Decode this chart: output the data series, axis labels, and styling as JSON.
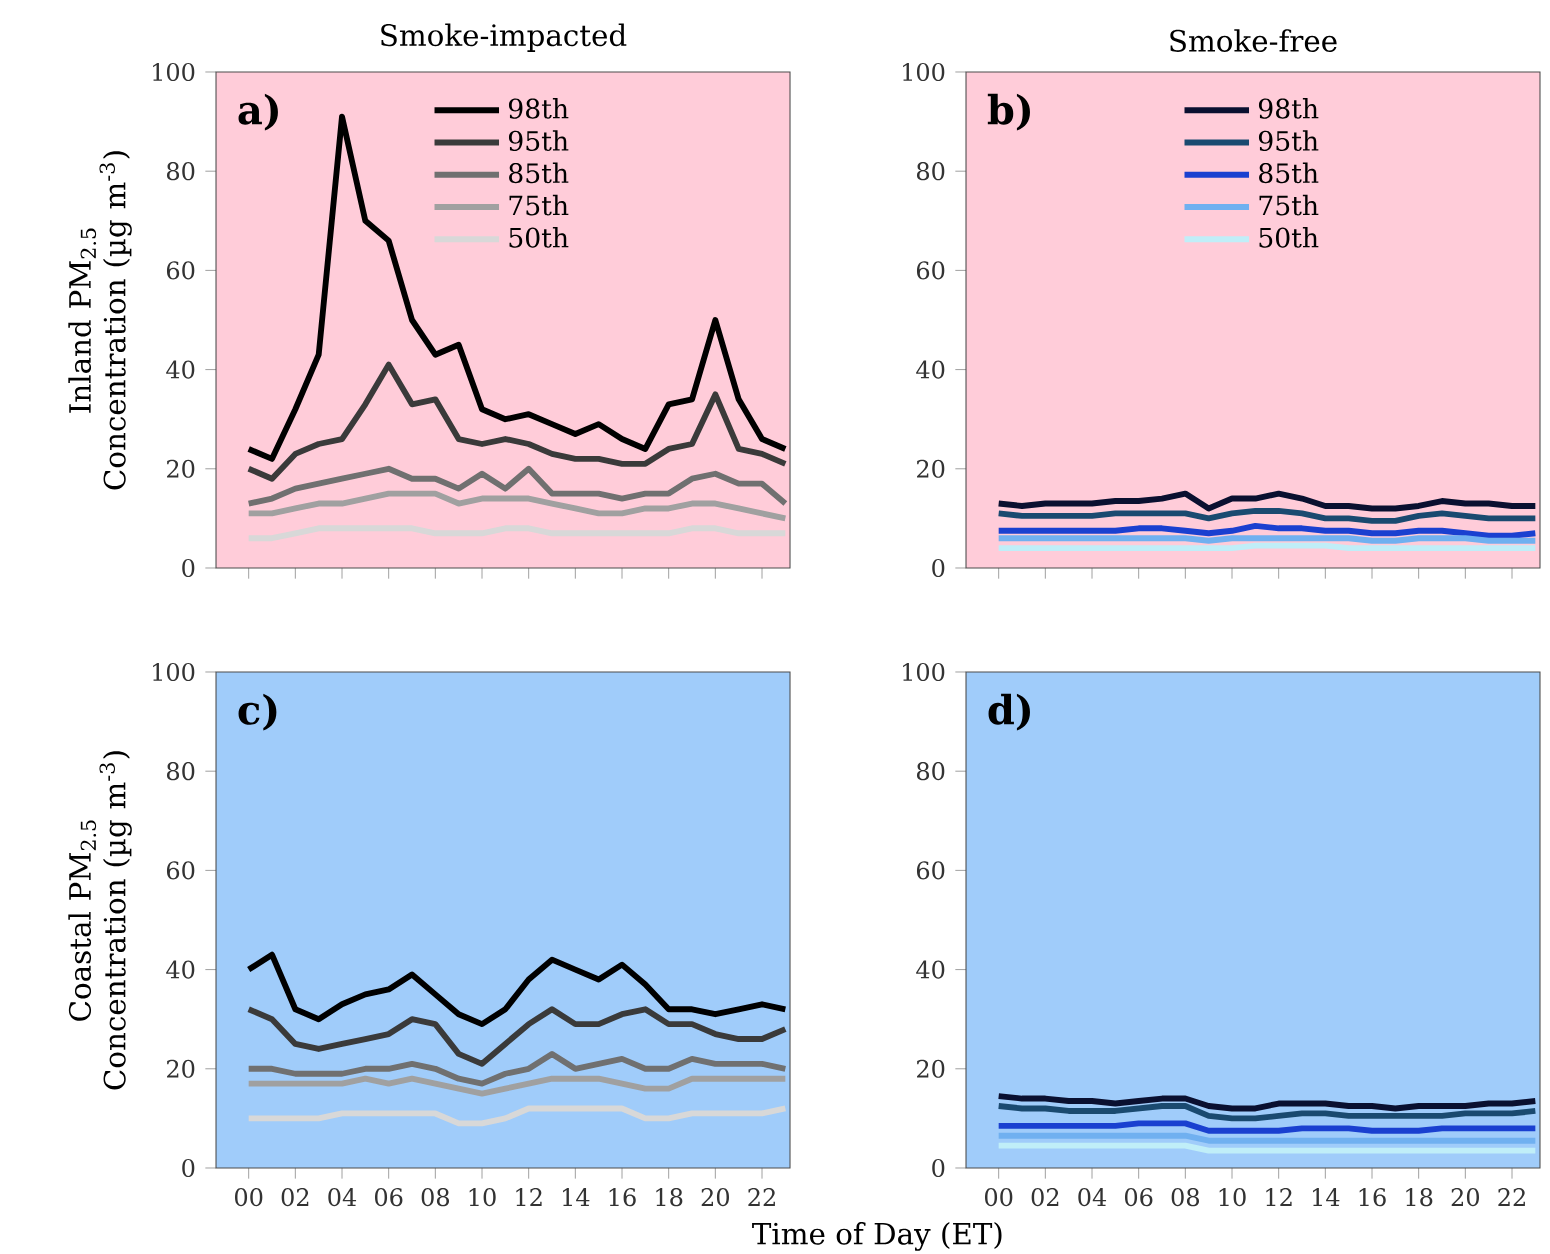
{
  "chart_data": [
    {
      "type": "line",
      "title": "Smoke-impacted",
      "ylabel": "Inland PM$_{2.5}$ Concentration (µg m$^{-3}$)",
      "annotations": [
        "a)"
      ],
      "x": [
        0,
        1,
        2,
        3,
        4,
        5,
        6,
        7,
        8,
        9,
        10,
        11,
        12,
        13,
        14,
        15,
        16,
        17,
        18,
        19,
        20,
        21,
        22,
        23
      ],
      "xlim": [
        -1.4,
        23.2
      ],
      "ylim": [
        0,
        100
      ],
      "xticks": [
        {
          "value": 0,
          "label": null
        },
        {
          "value": 2,
          "label": null
        },
        {
          "value": 4,
          "label": null
        },
        {
          "value": 6,
          "label": null
        },
        {
          "value": 8,
          "label": null
        },
        {
          "value": 10,
          "label": null
        },
        {
          "value": 12,
          "label": null
        },
        {
          "value": 14,
          "label": null
        },
        {
          "value": 16,
          "label": null
        },
        {
          "value": 18,
          "label": null
        },
        {
          "value": 20,
          "label": null
        },
        {
          "value": 22,
          "label": null
        }
      ],
      "yticks": [
        0,
        20,
        40,
        60,
        80,
        100
      ],
      "tick_labels": "y",
      "legend": "top",
      "marker": "none",
      "line_style": "solid",
      "series": [
        {
          "name": "98th",
          "color": "#000000",
          "values": [
            24,
            22,
            32,
            43,
            91,
            70,
            66,
            50,
            43,
            45,
            32,
            30,
            31,
            29,
            27,
            29,
            26,
            24,
            33,
            34,
            50,
            34,
            26,
            24
          ]
        },
        {
          "name": "95th",
          "color": "#3a3a3a",
          "values": [
            20,
            18,
            23,
            25,
            26,
            33,
            41,
            33,
            34,
            26,
            25,
            26,
            25,
            23,
            22,
            22,
            21,
            21,
            24,
            25,
            35,
            24,
            23,
            21
          ]
        },
        {
          "name": "85th",
          "color": "#707070",
          "values": [
            13,
            14,
            16,
            17,
            18,
            19,
            20,
            18,
            18,
            16,
            19,
            16,
            20,
            15,
            15,
            15,
            14,
            15,
            15,
            18,
            19,
            17,
            17,
            13
          ]
        },
        {
          "name": "75th",
          "color": "#a0a0a0",
          "values": [
            11,
            11,
            12,
            13,
            13,
            14,
            15,
            15,
            15,
            13,
            14,
            14,
            14,
            13,
            12,
            11,
            11,
            12,
            12,
            13,
            13,
            12,
            11,
            10
          ]
        },
        {
          "name": "50th",
          "color": "#d8d8d8",
          "values": [
            6,
            6,
            7,
            8,
            8,
            8,
            8,
            8,
            7,
            7,
            7,
            8,
            8,
            7,
            7,
            7,
            7,
            7,
            7,
            8,
            8,
            7,
            7,
            7
          ]
        }
      ]
    },
    {
      "type": "line",
      "title": "Smoke-free",
      "annotations": [
        "b)"
      ],
      "x": [
        0,
        1,
        2,
        3,
        4,
        5,
        6,
        7,
        8,
        9,
        10,
        11,
        12,
        13,
        14,
        15,
        16,
        17,
        18,
        19,
        20,
        21,
        22,
        23
      ],
      "xlim": [
        -1.4,
        23.2
      ],
      "ylim": [
        0,
        100
      ],
      "xticks": [
        {
          "value": 0,
          "label": null
        },
        {
          "value": 2,
          "label": null
        },
        {
          "value": 4,
          "label": null
        },
        {
          "value": 6,
          "label": null
        },
        {
          "value": 8,
          "label": null
        },
        {
          "value": 10,
          "label": null
        },
        {
          "value": 12,
          "label": null
        },
        {
          "value": 14,
          "label": null
        },
        {
          "value": 16,
          "label": null
        },
        {
          "value": 18,
          "label": null
        },
        {
          "value": 20,
          "label": null
        },
        {
          "value": 22,
          "label": null
        }
      ],
      "yticks": [
        0,
        20,
        40,
        60,
        80,
        100
      ],
      "tick_labels": "y",
      "legend": "top",
      "marker": "none",
      "line_style": "solid",
      "series": [
        {
          "name": "98th",
          "color": "#0a1030",
          "values": [
            13,
            12.5,
            13,
            13,
            13,
            13.5,
            13.5,
            14,
            15,
            12,
            14,
            14,
            15,
            14,
            12.5,
            12.5,
            12,
            12,
            12.5,
            13.5,
            13,
            13,
            12.5,
            12.5
          ]
        },
        {
          "name": "95th",
          "color": "#1a4a70",
          "values": [
            11,
            10.5,
            10.5,
            10.5,
            10.5,
            11,
            11,
            11,
            11,
            10,
            11,
            11.5,
            11.5,
            11,
            10,
            10,
            9.5,
            9.5,
            10.5,
            11,
            10.5,
            10,
            10,
            10
          ]
        },
        {
          "name": "85th",
          "color": "#1a40d0",
          "values": [
            7.5,
            7.5,
            7.5,
            7.5,
            7.5,
            7.5,
            8,
            8,
            7.5,
            7,
            7.5,
            8.5,
            8,
            8,
            7.5,
            7.5,
            7,
            7,
            7.5,
            7.5,
            7,
            6.5,
            6.5,
            7
          ]
        },
        {
          "name": "75th",
          "color": "#70b0f0",
          "values": [
            6,
            6,
            6,
            6,
            6,
            6,
            6,
            6,
            6,
            5.5,
            6,
            6,
            6,
            6,
            6,
            6,
            5.5,
            5.5,
            6,
            6,
            6,
            5.5,
            5.5,
            5.5
          ]
        },
        {
          "name": "50th",
          "color": "#c0eef8",
          "values": [
            4,
            4,
            4,
            4,
            4,
            4,
            4,
            4,
            4,
            4,
            4,
            4.5,
            4.5,
            4.5,
            4.5,
            4,
            4,
            4,
            4,
            4,
            4,
            4,
            4,
            4
          ]
        }
      ]
    },
    {
      "type": "line",
      "ylabel": "Coastal PM$_{2.5}$ Concentration (µg m$^{-3}$)",
      "xlabel": "Time of Day (ET)",
      "annotations": [
        "c)"
      ],
      "x": [
        0,
        1,
        2,
        3,
        4,
        5,
        6,
        7,
        8,
        9,
        10,
        11,
        12,
        13,
        14,
        15,
        16,
        17,
        18,
        19,
        20,
        21,
        22,
        23
      ],
      "xlim": [
        -1.4,
        23.2
      ],
      "ylim": [
        0,
        100
      ],
      "xticks": [
        {
          "value": 0,
          "label": "00"
        },
        {
          "value": 2,
          "label": "02"
        },
        {
          "value": 4,
          "label": "04"
        },
        {
          "value": 6,
          "label": "06"
        },
        {
          "value": 8,
          "label": "08"
        },
        {
          "value": 10,
          "label": "10"
        },
        {
          "value": 12,
          "label": "12"
        },
        {
          "value": 14,
          "label": "14"
        },
        {
          "value": 16,
          "label": "16"
        },
        {
          "value": 18,
          "label": "18"
        },
        {
          "value": 20,
          "label": "20"
        },
        {
          "value": 22,
          "label": "22"
        }
      ],
      "yticks": [
        0,
        20,
        40,
        60,
        80,
        100
      ],
      "marker": "none",
      "line_style": "solid",
      "series": [
        {
          "color": "#000000",
          "values": [
            40,
            43,
            32,
            30,
            33,
            35,
            36,
            39,
            35,
            31,
            29,
            32,
            38,
            42,
            40,
            38,
            41,
            37,
            32,
            32,
            31,
            32,
            33,
            32
          ]
        },
        {
          "color": "#3a3a3a",
          "values": [
            32,
            30,
            25,
            24,
            25,
            26,
            27,
            30,
            29,
            23,
            21,
            25,
            29,
            32,
            29,
            29,
            31,
            32,
            29,
            29,
            27,
            26,
            26,
            28
          ]
        },
        {
          "color": "#707070",
          "values": [
            20,
            20,
            19,
            19,
            19,
            20,
            20,
            21,
            20,
            18,
            17,
            19,
            20,
            23,
            20,
            21,
            22,
            20,
            20,
            22,
            21,
            21,
            21,
            20
          ]
        },
        {
          "color": "#a0a0a0",
          "values": [
            17,
            17,
            17,
            17,
            17,
            18,
            17,
            18,
            17,
            16,
            15,
            16,
            17,
            18,
            18,
            18,
            17,
            16,
            16,
            18,
            18,
            18,
            18,
            18
          ]
        },
        {
          "color": "#d8d8d8",
          "values": [
            10,
            10,
            10,
            10,
            11,
            11,
            11,
            11,
            11,
            9,
            9,
            10,
            12,
            12,
            12,
            12,
            12,
            10,
            10,
            11,
            11,
            11,
            11,
            12
          ]
        }
      ]
    },
    {
      "type": "line",
      "annotations": [
        "d)"
      ],
      "x": [
        0,
        1,
        2,
        3,
        4,
        5,
        6,
        7,
        8,
        9,
        10,
        11,
        12,
        13,
        14,
        15,
        16,
        17,
        18,
        19,
        20,
        21,
        22,
        23
      ],
      "xlim": [
        -1.4,
        23.2
      ],
      "ylim": [
        0,
        100
      ],
      "xticks": [
        {
          "value": 0,
          "label": "00"
        },
        {
          "value": 2,
          "label": "02"
        },
        {
          "value": 4,
          "label": "04"
        },
        {
          "value": 6,
          "label": "06"
        },
        {
          "value": 8,
          "label": "08"
        },
        {
          "value": 10,
          "label": "10"
        },
        {
          "value": 12,
          "label": "12"
        },
        {
          "value": 14,
          "label": "14"
        },
        {
          "value": 16,
          "label": "16"
        },
        {
          "value": 18,
          "label": "18"
        },
        {
          "value": 20,
          "label": "20"
        },
        {
          "value": 22,
          "label": "22"
        }
      ],
      "yticks": [
        0,
        20,
        40,
        60,
        80,
        100
      ],
      "marker": "none",
      "line_style": "solid",
      "series": [
        {
          "color": "#0a1030",
          "values": [
            14.5,
            14,
            14,
            13.5,
            13.5,
            13,
            13.5,
            14,
            14,
            12.5,
            12,
            12,
            13,
            13,
            13,
            12.5,
            12.5,
            12,
            12.5,
            12.5,
            12.5,
            13,
            13,
            13.5
          ]
        },
        {
          "color": "#1a4a70",
          "values": [
            12.5,
            12,
            12,
            11.5,
            11.5,
            11.5,
            12,
            12.5,
            12.5,
            10.5,
            10,
            10,
            10.5,
            11,
            11,
            10.5,
            10.5,
            10.5,
            10.5,
            10.5,
            11,
            11,
            11,
            11.5
          ]
        },
        {
          "color": "#1a40d0",
          "values": [
            8.5,
            8.5,
            8.5,
            8.5,
            8.5,
            8.5,
            9,
            9,
            9,
            7.5,
            7.5,
            7.5,
            7.5,
            8,
            8,
            8,
            7.5,
            7.5,
            7.5,
            8,
            8,
            8,
            8,
            8
          ]
        },
        {
          "color": "#70b0f0",
          "values": [
            6.5,
            6.5,
            6.5,
            6.5,
            6.5,
            6.5,
            6.5,
            6.5,
            6.5,
            5.5,
            5.5,
            5.5,
            5.5,
            5.5,
            5.5,
            5.5,
            5.5,
            5.5,
            5.5,
            5.5,
            5.5,
            5.5,
            5.5,
            5.5
          ]
        },
        {
          "color": "#c0eef8",
          "values": [
            4.5,
            4.5,
            4.5,
            4.5,
            4.5,
            4.5,
            4.5,
            4.5,
            4.5,
            3.5,
            3.5,
            3.5,
            3.5,
            3.5,
            3.5,
            3.5,
            3.5,
            3.5,
            3.5,
            3.5,
            3.5,
            3.5,
            3.5,
            3.5
          ]
        }
      ]
    }
  ]
}
